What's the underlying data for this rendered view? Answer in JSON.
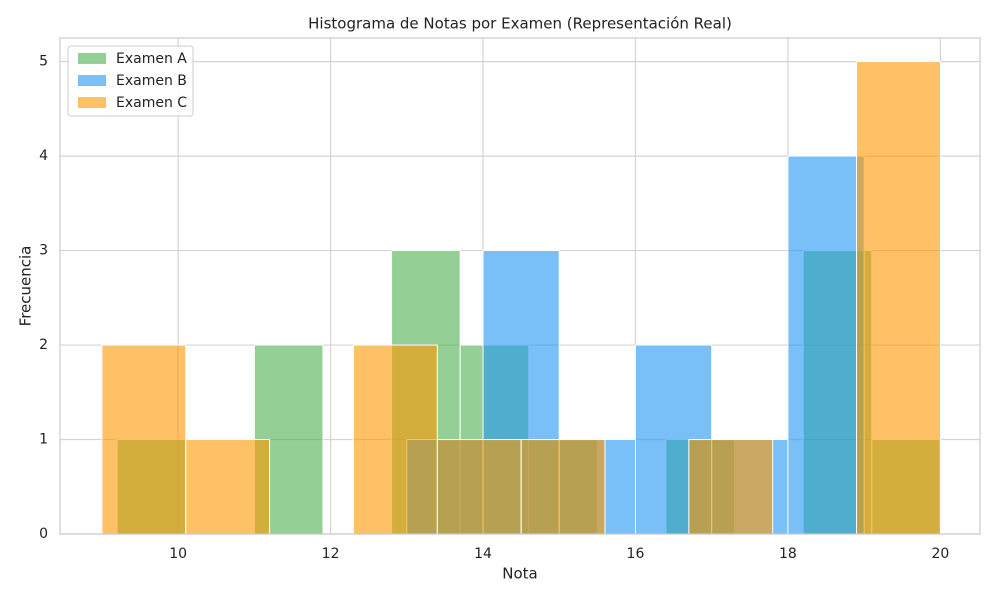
{
  "chart_data": {
    "type": "histogram",
    "title": "Histograma de Notas por Examen (Representación Real)",
    "x_label": "Nota",
    "y_label": "Frecuencia",
    "series": [
      {
        "name": "Examen A",
        "color": "#4caf50",
        "bins": [
          9.2,
          10.1,
          11.0,
          11.9,
          12.8,
          13.7,
          14.6,
          15.5,
          16.4,
          17.3,
          18.2,
          19.1,
          20.0
        ],
        "values": [
          1,
          0,
          2,
          0,
          3,
          2,
          1,
          0,
          1,
          0,
          3,
          1
        ]
      },
      {
        "name": "Examen B",
        "color": "#2196f3",
        "bins": [
          13,
          14,
          15,
          16,
          17,
          18,
          19,
          20
        ],
        "values": [
          1,
          3,
          1,
          2,
          1,
          4,
          0
        ]
      },
      {
        "name": "Examen C",
        "color": "#ff9800",
        "bins": [
          9.0,
          10.1,
          11.2,
          12.3,
          13.4,
          14.5,
          15.6,
          16.7,
          17.8,
          18.9,
          20.0
        ],
        "values": [
          2,
          1,
          0,
          2,
          1,
          1,
          0,
          1,
          0,
          5
        ]
      }
    ],
    "xlim": [
      8.45,
      20.52
    ],
    "ylim": [
      0,
      5.25
    ],
    "xticks": [
      10,
      12,
      14,
      16,
      18,
      20
    ],
    "yticks": [
      0,
      1,
      2,
      3,
      4,
      5
    ],
    "grid": true,
    "legend": "upper-left",
    "opacity": 0.6
  }
}
